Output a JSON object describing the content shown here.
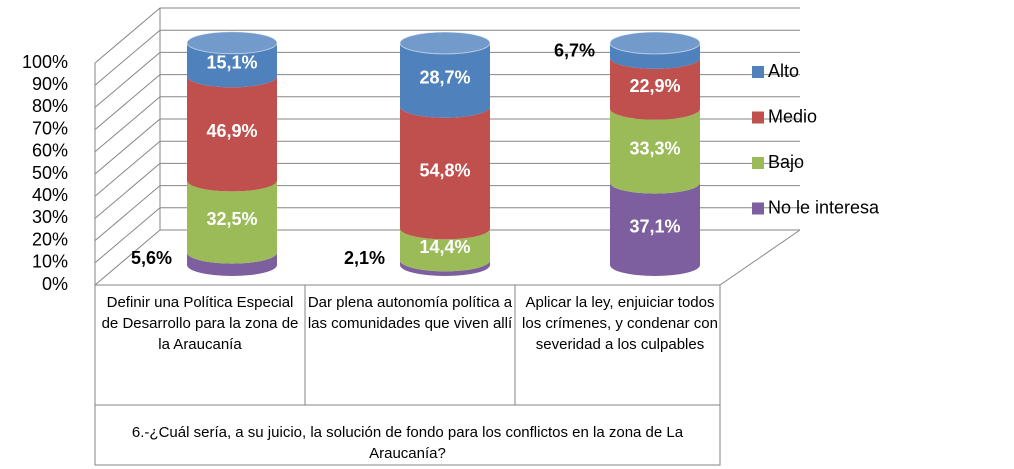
{
  "chart_data": {
    "type": "cylinder-stacked-bar",
    "categories": [
      "Definir   una Política Especial de Desarrollo para la zona de la Araucanía",
      "Dar plena autonomía política a las comunidades que viven allí",
      "Aplicar la ley, enjuiciar todos los crímenes, y condenar con severidad a los culpables"
    ],
    "x_label": "6.-¿Cuál sería, a su juicio, la solución de fondo para los conflictos en la zona de La Araucanía?",
    "series": [
      {
        "name": "No le interesa",
        "color": "#7d5fa0",
        "values": [
          5.6,
          2.1,
          37.1
        ],
        "value_labels": [
          "5,6%",
          "2,1%",
          "37,1%"
        ]
      },
      {
        "name": "Bajo",
        "color": "#9bbb59",
        "values": [
          32.5,
          14.4,
          33.3
        ],
        "value_labels": [
          "32,5%",
          "14,4%",
          "33,3%"
        ]
      },
      {
        "name": "Medio",
        "color": "#c0504d",
        "values": [
          46.9,
          54.8,
          22.9
        ],
        "value_labels": [
          "46,9%",
          "54,8%",
          "22,9%"
        ]
      },
      {
        "name": "Alto",
        "color": "#4f81bd",
        "values": [
          15.1,
          28.7,
          6.7
        ],
        "value_labels": [
          "15,1%",
          "28,7%",
          "6,7%"
        ]
      }
    ],
    "ylim": [
      0,
      100
    ],
    "yticks": [
      {
        "value": 0,
        "label": "0%"
      },
      {
        "value": 10,
        "label": "10%"
      },
      {
        "value": 20,
        "label": "20%"
      },
      {
        "value": 30,
        "label": "30%"
      },
      {
        "value": 40,
        "label": "40%"
      },
      {
        "value": 50,
        "label": "50%"
      },
      {
        "value": 60,
        "label": "60%"
      },
      {
        "value": 70,
        "label": "70%"
      },
      {
        "value": 80,
        "label": "80%"
      },
      {
        "value": 90,
        "label": "90%"
      },
      {
        "value": 100,
        "label": "100%"
      }
    ],
    "grid": true,
    "legend": "right"
  }
}
